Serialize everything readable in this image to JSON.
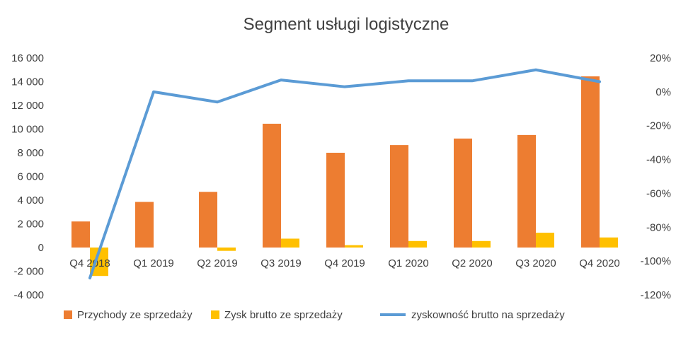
{
  "chart_data": {
    "type": "bar",
    "title": "Segment usługi logistyczne",
    "categories": [
      "Q4 2018",
      "Q1 2019",
      "Q2 2019",
      "Q3 2019",
      "Q4 2019",
      "Q1 2020",
      "Q2 2020",
      "Q3 2020",
      "Q4 2020"
    ],
    "series": [
      {
        "name": "Przychody ze sprzedaży",
        "type": "bar",
        "axis": "left",
        "color": "#ED7D31",
        "values": [
          2200,
          3850,
          4700,
          10450,
          8000,
          8650,
          9200,
          9500,
          14450
        ]
      },
      {
        "name": "Zysk brutto ze sprzedaży",
        "type": "bar",
        "axis": "left",
        "color": "#FFC000",
        "values": [
          -2400,
          0,
          -280,
          750,
          200,
          550,
          550,
          1250,
          850
        ]
      },
      {
        "name": "zyskowność brutto na sprzedaży",
        "type": "line",
        "axis": "right",
        "color": "#5B9BD5",
        "values": [
          -110,
          0,
          -6,
          7,
          3,
          6.5,
          6.5,
          13,
          6
        ]
      }
    ],
    "y_left": {
      "range": [
        -4000,
        16000
      ],
      "ticks": [
        -4000,
        -2000,
        0,
        2000,
        4000,
        6000,
        8000,
        10000,
        12000,
        14000,
        16000
      ],
      "tick_labels": [
        "-4 000",
        "-2 000",
        "0",
        "2 000",
        "4 000",
        "6 000",
        "8 000",
        "10 000",
        "12 000",
        "14 000",
        "16 000"
      ]
    },
    "y_right": {
      "range": [
        -120,
        20
      ],
      "ticks": [
        -120,
        -100,
        -80,
        -60,
        -40,
        -20,
        0,
        20
      ],
      "tick_labels": [
        "-120%",
        "-100%",
        "-80%",
        "-60%",
        "-40%",
        "-20%",
        "0%",
        "20%"
      ]
    },
    "grid": false,
    "legend_position": "bottom"
  }
}
